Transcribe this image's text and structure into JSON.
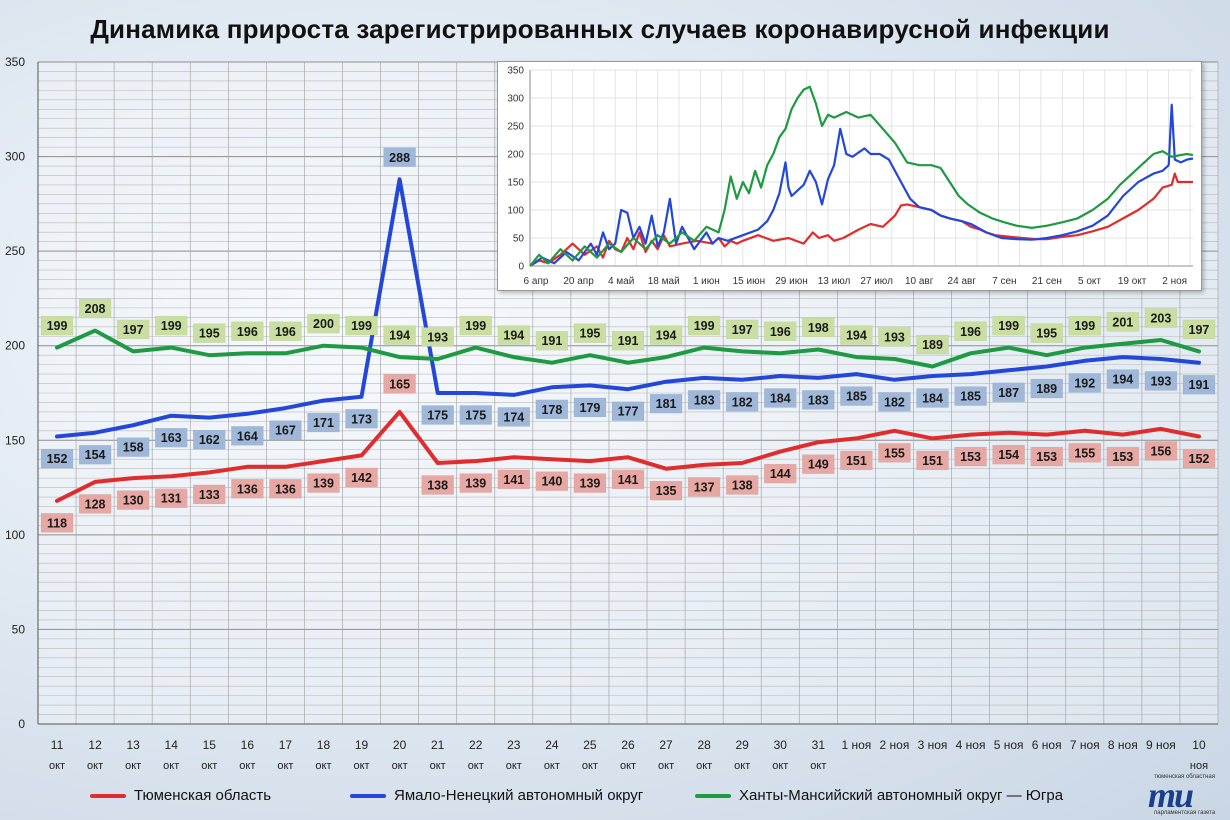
{
  "title": "Динамика прироста зарегистрированных случаев коронавирусной инфекции",
  "chart_data": [
    {
      "type": "line",
      "yticks": [
        0,
        50,
        100,
        150,
        200,
        250,
        300,
        350
      ],
      "ylim": [
        0,
        350
      ],
      "categories": [
        [
          "11",
          "окт"
        ],
        [
          "12",
          "окт"
        ],
        [
          "13",
          "окт"
        ],
        [
          "14",
          "окт"
        ],
        [
          "15",
          "окт"
        ],
        [
          "16",
          "окт"
        ],
        [
          "17",
          "окт"
        ],
        [
          "18",
          "окт"
        ],
        [
          "19",
          "окт"
        ],
        [
          "20",
          "окт"
        ],
        [
          "21",
          "окт"
        ],
        [
          "22",
          "окт"
        ],
        [
          "23",
          "окт"
        ],
        [
          "24",
          "окт"
        ],
        [
          "25",
          "окт"
        ],
        [
          "26",
          "окт"
        ],
        [
          "27",
          "окт"
        ],
        [
          "28",
          "окт"
        ],
        [
          "29",
          "окт"
        ],
        [
          "30",
          "окт"
        ],
        [
          "31",
          "окт"
        ],
        [
          "1 ноя",
          ""
        ],
        [
          "2 ноя",
          ""
        ],
        [
          "3 ноя",
          ""
        ],
        [
          "4 ноя",
          ""
        ],
        [
          "5 ноя",
          ""
        ],
        [
          "6 ноя",
          ""
        ],
        [
          "7 ноя",
          ""
        ],
        [
          "8 ноя",
          ""
        ],
        [
          "9 ноя",
          ""
        ],
        [
          "10",
          "ноя"
        ]
      ],
      "series": [
        {
          "name": "Тюменская область",
          "color": "#e02c2c",
          "label_bg": "#e7a7a2",
          "values": [
            118,
            128,
            130,
            131,
            133,
            136,
            136,
            139,
            142,
            165,
            138,
            139,
            141,
            140,
            139,
            141,
            135,
            137,
            138,
            144,
            149,
            151,
            155,
            151,
            153,
            154,
            153,
            155,
            153,
            156,
            152
          ]
        },
        {
          "name": "Ямало-Ненецкий автономный округ",
          "color": "#2347d8",
          "label_bg": "#9fb7d8",
          "values": [
            152,
            154,
            158,
            163,
            162,
            164,
            167,
            171,
            173,
            288,
            175,
            175,
            174,
            178,
            179,
            177,
            181,
            183,
            182,
            184,
            183,
            185,
            182,
            184,
            185,
            187,
            189,
            192,
            194,
            193,
            191
          ]
        },
        {
          "name": "Ханты-Мансийский автономный округ — Югра",
          "color": "#1e9a42",
          "label_bg": "#c9dea0",
          "values": [
            199,
            208,
            197,
            199,
            195,
            196,
            196,
            200,
            199,
            194,
            193,
            199,
            194,
            191,
            195,
            191,
            194,
            199,
            197,
            196,
            198,
            194,
            193,
            189,
            196,
            199,
            195,
            199,
            201,
            203,
            197
          ]
        }
      ]
    },
    {
      "type": "line",
      "yticks": [
        0,
        50,
        100,
        150,
        200,
        250,
        300,
        350
      ],
      "ylim": [
        0,
        350
      ],
      "xticks": [
        "6 апр",
        "20 апр",
        "4 май",
        "18 май",
        "1 июн",
        "15 июн",
        "29 июн",
        "13 июл",
        "27 июл",
        "10 авг",
        "24 авг",
        "7 сен",
        "21 сен",
        "5 окт",
        "19 окт",
        "2 ноя"
      ],
      "x_days": [
        0,
        218
      ],
      "series": [
        {
          "name": "Тюменская область",
          "color": "#e02c2c",
          "points": [
            [
              0,
              0
            ],
            [
              3,
              10
            ],
            [
              6,
              5
            ],
            [
              10,
              20
            ],
            [
              14,
              40
            ],
            [
              18,
              20
            ],
            [
              22,
              35
            ],
            [
              24,
              15
            ],
            [
              26,
              45
            ],
            [
              28,
              30
            ],
            [
              30,
              25
            ],
            [
              32,
              50
            ],
            [
              34,
              30
            ],
            [
              36,
              60
            ],
            [
              38,
              25
            ],
            [
              40,
              45
            ],
            [
              42,
              30
            ],
            [
              44,
              55
            ],
            [
              46,
              35
            ],
            [
              50,
              40
            ],
            [
              55,
              45
            ],
            [
              60,
              40
            ],
            [
              62,
              50
            ],
            [
              64,
              35
            ],
            [
              66,
              45
            ],
            [
              68,
              40
            ],
            [
              70,
              45
            ],
            [
              75,
              55
            ],
            [
              80,
              45
            ],
            [
              85,
              50
            ],
            [
              90,
              40
            ],
            [
              93,
              60
            ],
            [
              95,
              50
            ],
            [
              98,
              55
            ],
            [
              100,
              45
            ],
            [
              103,
              50
            ],
            [
              108,
              65
            ],
            [
              112,
              75
            ],
            [
              116,
              70
            ],
            [
              120,
              90
            ],
            [
              122,
              108
            ],
            [
              124,
              110
            ],
            [
              128,
              105
            ],
            [
              132,
              100
            ],
            [
              135,
              90
            ],
            [
              138,
              85
            ],
            [
              142,
              80
            ],
            [
              145,
              70
            ],
            [
              148,
              65
            ],
            [
              150,
              60
            ],
            [
              153,
              55
            ],
            [
              158,
              52
            ],
            [
              162,
              50
            ],
            [
              166,
              48
            ],
            [
              170,
              48
            ],
            [
              175,
              52
            ],
            [
              180,
              55
            ],
            [
              185,
              62
            ],
            [
              190,
              70
            ],
            [
              195,
              85
            ],
            [
              200,
              100
            ],
            [
              205,
              120
            ],
            [
              208,
              140
            ],
            [
              211,
              145
            ],
            [
              212,
              165
            ],
            [
              213,
              150
            ],
            [
              216,
              150
            ],
            [
              218,
              150
            ]
          ]
        },
        {
          "name": "Ямало-Ненецкий автономный округ",
          "color": "#2347d8",
          "points": [
            [
              0,
              0
            ],
            [
              4,
              15
            ],
            [
              8,
              5
            ],
            [
              12,
              25
            ],
            [
              16,
              10
            ],
            [
              20,
              40
            ],
            [
              22,
              20
            ],
            [
              24,
              60
            ],
            [
              26,
              30
            ],
            [
              28,
              40
            ],
            [
              30,
              100
            ],
            [
              32,
              95
            ],
            [
              34,
              50
            ],
            [
              36,
              70
            ],
            [
              38,
              40
            ],
            [
              40,
              90
            ],
            [
              42,
              35
            ],
            [
              44,
              60
            ],
            [
              46,
              120
            ],
            [
              48,
              40
            ],
            [
              50,
              70
            ],
            [
              54,
              30
            ],
            [
              58,
              60
            ],
            [
              60,
              40
            ],
            [
              62,
              50
            ],
            [
              65,
              45
            ],
            [
              70,
              55
            ],
            [
              75,
              65
            ],
            [
              78,
              80
            ],
            [
              80,
              100
            ],
            [
              82,
              130
            ],
            [
              84,
              185
            ],
            [
              85,
              140
            ],
            [
              86,
              125
            ],
            [
              90,
              145
            ],
            [
              92,
              170
            ],
            [
              94,
              150
            ],
            [
              96,
              110
            ],
            [
              98,
              155
            ],
            [
              100,
              180
            ],
            [
              102,
              245
            ],
            [
              104,
              200
            ],
            [
              106,
              195
            ],
            [
              110,
              210
            ],
            [
              112,
              200
            ],
            [
              115,
              200
            ],
            [
              118,
              190
            ],
            [
              122,
              150
            ],
            [
              125,
              120
            ],
            [
              128,
              105
            ],
            [
              132,
              100
            ],
            [
              135,
              90
            ],
            [
              138,
              85
            ],
            [
              142,
              80
            ],
            [
              145,
              75
            ],
            [
              150,
              60
            ],
            [
              155,
              50
            ],
            [
              160,
              48
            ],
            [
              165,
              47
            ],
            [
              170,
              50
            ],
            [
              175,
              55
            ],
            [
              180,
              62
            ],
            [
              185,
              72
            ],
            [
              190,
              90
            ],
            [
              195,
              125
            ],
            [
              200,
              150
            ],
            [
              205,
              165
            ],
            [
              208,
              170
            ],
            [
              210,
              180
            ],
            [
              211,
              288
            ],
            [
              212,
              190
            ],
            [
              214,
              185
            ],
            [
              216,
              190
            ],
            [
              218,
              192
            ]
          ]
        },
        {
          "name": "Ханты-Мансийский автономный округ — Югра",
          "color": "#1e9a42",
          "points": [
            [
              0,
              0
            ],
            [
              3,
              20
            ],
            [
              6,
              5
            ],
            [
              10,
              30
            ],
            [
              14,
              10
            ],
            [
              18,
              35
            ],
            [
              22,
              15
            ],
            [
              26,
              40
            ],
            [
              30,
              25
            ],
            [
              34,
              50
            ],
            [
              38,
              30
            ],
            [
              42,
              55
            ],
            [
              46,
              40
            ],
            [
              50,
              60
            ],
            [
              54,
              45
            ],
            [
              58,
              70
            ],
            [
              62,
              60
            ],
            [
              64,
              100
            ],
            [
              66,
              160
            ],
            [
              68,
              120
            ],
            [
              70,
              150
            ],
            [
              72,
              130
            ],
            [
              74,
              170
            ],
            [
              76,
              140
            ],
            [
              78,
              180
            ],
            [
              80,
              200
            ],
            [
              82,
              230
            ],
            [
              84,
              245
            ],
            [
              86,
              280
            ],
            [
              88,
              300
            ],
            [
              90,
              315
            ],
            [
              92,
              320
            ],
            [
              94,
              290
            ],
            [
              96,
              250
            ],
            [
              98,
              270
            ],
            [
              100,
              265
            ],
            [
              104,
              275
            ],
            [
              108,
              265
            ],
            [
              112,
              270
            ],
            [
              116,
              245
            ],
            [
              120,
              220
            ],
            [
              124,
              185
            ],
            [
              128,
              180
            ],
            [
              132,
              180
            ],
            [
              135,
              175
            ],
            [
              138,
              150
            ],
            [
              141,
              125
            ],
            [
              144,
              110
            ],
            [
              148,
              95
            ],
            [
              152,
              85
            ],
            [
              156,
              78
            ],
            [
              160,
              72
            ],
            [
              165,
              68
            ],
            [
              170,
              72
            ],
            [
              175,
              78
            ],
            [
              180,
              85
            ],
            [
              185,
              100
            ],
            [
              190,
              120
            ],
            [
              194,
              145
            ],
            [
              198,
              165
            ],
            [
              202,
              185
            ],
            [
              205,
              200
            ],
            [
              208,
              205
            ],
            [
              211,
              195
            ],
            [
              214,
              198
            ],
            [
              216,
              200
            ],
            [
              218,
              198
            ]
          ]
        }
      ]
    }
  ],
  "legend": [
    {
      "label": "Тюменская область",
      "color": "#e02c2c"
    },
    {
      "label": "Ямало-Ненецкий автономный округ",
      "color": "#2347d8"
    },
    {
      "label": "Ханты-Мансийский автономный округ — Югра",
      "color": "#1e9a42"
    }
  ],
  "logo": {
    "top_text": "тюменская областная",
    "mark": "mu",
    "bottom_text": "парламентская газета"
  }
}
